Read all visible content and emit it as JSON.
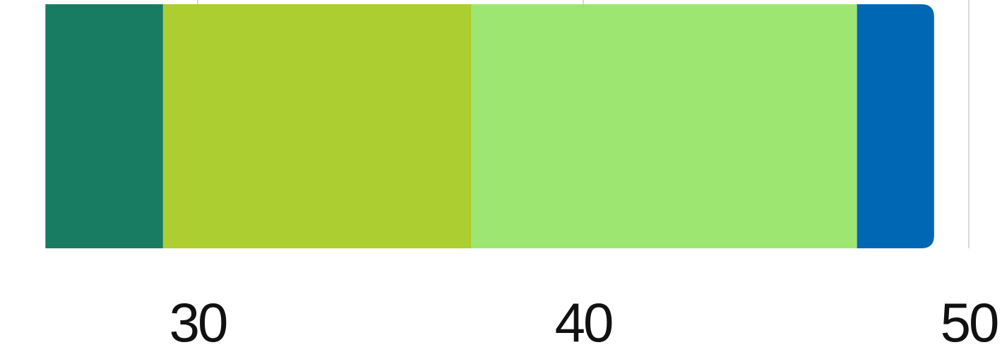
{
  "chart_data": {
    "type": "bar",
    "orientation": "horizontal",
    "stacked": true,
    "title": "",
    "xlabel": "",
    "ylabel": "",
    "xlim_visible": [
      26.05,
      51.0
    ],
    "gridlines": [
      30,
      40,
      50
    ],
    "grid": true,
    "ticks": [
      "30",
      "40",
      "50"
    ],
    "tick_values": [
      30,
      40,
      50
    ],
    "segments": [
      {
        "start": 26.05,
        "end": 29.1,
        "value": 3.05,
        "color": "#177c62"
      },
      {
        "start": 29.1,
        "end": 37.1,
        "value": 8.0,
        "color": "#acce30"
      },
      {
        "start": 37.1,
        "end": 47.1,
        "value": 10.0,
        "color": "#9ee672"
      },
      {
        "start": 47.1,
        "end": 49.1,
        "value": 2.0,
        "color": "#0067b4"
      }
    ]
  }
}
